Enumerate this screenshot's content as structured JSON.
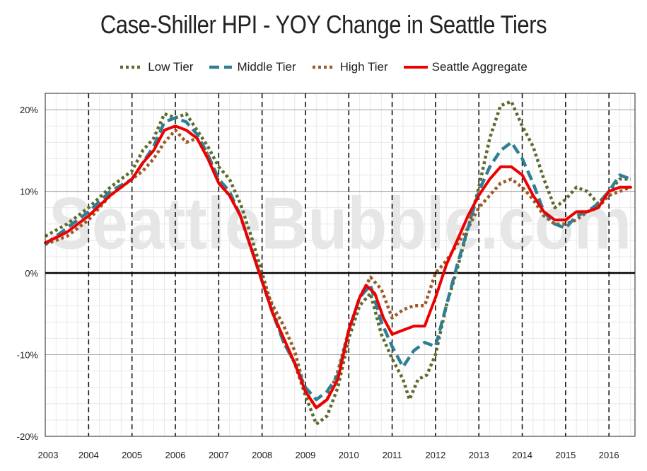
{
  "chart_data": {
    "type": "line",
    "title": "Case-Shiller HPI - YOY Change in Seattle Tiers",
    "watermark": "SeattleBubble.com",
    "xlim": [
      2003,
      2016.6
    ],
    "ylim": [
      -20,
      22
    ],
    "x_ticks": [
      2003,
      2004,
      2005,
      2006,
      2007,
      2008,
      2009,
      2010,
      2011,
      2012,
      2013,
      2014,
      2015,
      2016
    ],
    "x_tick_labels": [
      "2003",
      "2004",
      "2005",
      "2006",
      "2007",
      "2008",
      "2009",
      "2010",
      "2011",
      "2012",
      "2013",
      "2014",
      "2015",
      "2016"
    ],
    "y_ticks": [
      20,
      10,
      0,
      -10,
      -20
    ],
    "y_tick_labels": [
      "20%",
      "10%",
      "0%",
      "-10%",
      "-20%"
    ],
    "vertical_dashed_gridlines_at": [
      2004,
      2005,
      2006,
      2007,
      2008,
      2009,
      2010,
      2011,
      2012,
      2013,
      2014,
      2015,
      2016
    ],
    "zero_line": true,
    "grid": true,
    "legend_position": "top-center",
    "series": [
      {
        "name": "Low Tier",
        "color": "#5c6b2e",
        "style": "dotted",
        "points": [
          [
            2003.0,
            4.5
          ],
          [
            2003.5,
            6.0
          ],
          [
            2004.0,
            8.0
          ],
          [
            2004.5,
            10.5
          ],
          [
            2005.0,
            12.5
          ],
          [
            2005.25,
            15.0
          ],
          [
            2005.5,
            16.5
          ],
          [
            2005.75,
            19.5
          ],
          [
            2006.0,
            19.0
          ],
          [
            2006.25,
            19.5
          ],
          [
            2006.5,
            17.5
          ],
          [
            2006.75,
            15.5
          ],
          [
            2007.0,
            13.0
          ],
          [
            2007.25,
            11.5
          ],
          [
            2007.5,
            8.5
          ],
          [
            2007.75,
            4.5
          ],
          [
            2008.0,
            0.0
          ],
          [
            2008.25,
            -4.5
          ],
          [
            2008.5,
            -8.5
          ],
          [
            2008.75,
            -11.0
          ],
          [
            2009.0,
            -15.0
          ],
          [
            2009.25,
            -18.5
          ],
          [
            2009.5,
            -17.5
          ],
          [
            2009.75,
            -14.0
          ],
          [
            2010.0,
            -8.0
          ],
          [
            2010.25,
            -4.0
          ],
          [
            2010.5,
            -2.5
          ],
          [
            2010.75,
            -7.5
          ],
          [
            2011.0,
            -10.5
          ],
          [
            2011.25,
            -13.0
          ],
          [
            2011.4,
            -15.5
          ],
          [
            2011.6,
            -13.0
          ],
          [
            2011.8,
            -12.5
          ],
          [
            2012.0,
            -10.0
          ],
          [
            2012.25,
            -4.0
          ],
          [
            2012.5,
            0.5
          ],
          [
            2012.75,
            5.5
          ],
          [
            2013.0,
            10.5
          ],
          [
            2013.25,
            16.5
          ],
          [
            2013.5,
            20.5
          ],
          [
            2013.75,
            21.0
          ],
          [
            2014.0,
            18.0
          ],
          [
            2014.25,
            15.5
          ],
          [
            2014.5,
            11.5
          ],
          [
            2014.75,
            8.0
          ],
          [
            2015.0,
            9.0
          ],
          [
            2015.25,
            10.5
          ],
          [
            2015.5,
            10.0
          ],
          [
            2015.75,
            8.5
          ],
          [
            2016.0,
            10.0
          ],
          [
            2016.25,
            11.5
          ],
          [
            2016.5,
            11.5
          ]
        ]
      },
      {
        "name": "Middle Tier",
        "color": "#2e7f96",
        "style": "dashed",
        "points": [
          [
            2003.0,
            3.5
          ],
          [
            2003.5,
            5.5
          ],
          [
            2004.0,
            7.5
          ],
          [
            2004.5,
            10.0
          ],
          [
            2005.0,
            11.5
          ],
          [
            2005.25,
            13.5
          ],
          [
            2005.5,
            15.5
          ],
          [
            2005.75,
            18.5
          ],
          [
            2006.0,
            19.0
          ],
          [
            2006.25,
            18.5
          ],
          [
            2006.5,
            17.0
          ],
          [
            2006.75,
            14.5
          ],
          [
            2007.0,
            11.5
          ],
          [
            2007.25,
            10.0
          ],
          [
            2007.5,
            7.0
          ],
          [
            2007.75,
            3.0
          ],
          [
            2008.0,
            -1.0
          ],
          [
            2008.25,
            -5.0
          ],
          [
            2008.5,
            -8.5
          ],
          [
            2008.75,
            -11.0
          ],
          [
            2009.0,
            -14.0
          ],
          [
            2009.25,
            -15.5
          ],
          [
            2009.5,
            -14.5
          ],
          [
            2009.75,
            -12.5
          ],
          [
            2010.0,
            -7.0
          ],
          [
            2010.25,
            -3.0
          ],
          [
            2010.5,
            -1.5
          ],
          [
            2010.75,
            -6.0
          ],
          [
            2011.0,
            -9.0
          ],
          [
            2011.25,
            -11.5
          ],
          [
            2011.5,
            -9.5
          ],
          [
            2011.75,
            -8.5
          ],
          [
            2012.0,
            -9.0
          ],
          [
            2012.25,
            -4.0
          ],
          [
            2012.5,
            1.0
          ],
          [
            2012.75,
            5.5
          ],
          [
            2013.0,
            10.0
          ],
          [
            2013.25,
            13.0
          ],
          [
            2013.5,
            15.0
          ],
          [
            2013.75,
            16.0
          ],
          [
            2014.0,
            14.0
          ],
          [
            2014.25,
            11.0
          ],
          [
            2014.5,
            7.5
          ],
          [
            2014.75,
            6.0
          ],
          [
            2015.0,
            5.5
          ],
          [
            2015.25,
            7.0
          ],
          [
            2015.5,
            7.5
          ],
          [
            2015.75,
            8.5
          ],
          [
            2016.0,
            10.0
          ],
          [
            2016.25,
            12.0
          ],
          [
            2016.5,
            11.5
          ]
        ]
      },
      {
        "name": "High Tier",
        "color": "#9c5a28",
        "style": "dotted",
        "points": [
          [
            2003.0,
            3.5
          ],
          [
            2003.5,
            4.5
          ],
          [
            2004.0,
            6.5
          ],
          [
            2004.5,
            9.5
          ],
          [
            2005.0,
            11.5
          ],
          [
            2005.25,
            12.5
          ],
          [
            2005.5,
            14.0
          ],
          [
            2005.75,
            16.0
          ],
          [
            2006.0,
            17.5
          ],
          [
            2006.25,
            16.0
          ],
          [
            2006.5,
            16.5
          ],
          [
            2006.75,
            14.5
          ],
          [
            2007.0,
            11.0
          ],
          [
            2007.25,
            9.5
          ],
          [
            2007.5,
            7.0
          ],
          [
            2007.75,
            3.0
          ],
          [
            2008.0,
            -1.0
          ],
          [
            2008.25,
            -4.0
          ],
          [
            2008.5,
            -6.5
          ],
          [
            2008.75,
            -9.5
          ],
          [
            2009.0,
            -14.5
          ],
          [
            2009.25,
            -16.5
          ],
          [
            2009.5,
            -15.5
          ],
          [
            2009.75,
            -12.0
          ],
          [
            2010.0,
            -7.0
          ],
          [
            2010.25,
            -3.0
          ],
          [
            2010.5,
            -0.5
          ],
          [
            2010.75,
            -2.0
          ],
          [
            2011.0,
            -5.5
          ],
          [
            2011.25,
            -4.5
          ],
          [
            2011.5,
            -4.0
          ],
          [
            2011.75,
            -4.0
          ],
          [
            2012.0,
            0.0
          ],
          [
            2012.25,
            1.5
          ],
          [
            2012.5,
            3.5
          ],
          [
            2012.75,
            5.5
          ],
          [
            2013.0,
            8.0
          ],
          [
            2013.25,
            9.5
          ],
          [
            2013.5,
            11.0
          ],
          [
            2013.75,
            11.5
          ],
          [
            2014.0,
            10.5
          ],
          [
            2014.25,
            9.0
          ],
          [
            2014.5,
            7.0
          ],
          [
            2014.75,
            6.0
          ],
          [
            2015.0,
            6.0
          ],
          [
            2015.25,
            6.5
          ],
          [
            2015.5,
            7.5
          ],
          [
            2015.75,
            8.0
          ],
          [
            2016.0,
            9.5
          ],
          [
            2016.25,
            10.0
          ],
          [
            2016.5,
            10.5
          ]
        ]
      },
      {
        "name": "Seattle Aggregate",
        "color": "#ee0000",
        "style": "solid",
        "points": [
          [
            2003.0,
            3.7
          ],
          [
            2003.5,
            5.0
          ],
          [
            2004.0,
            7.0
          ],
          [
            2004.5,
            9.5
          ],
          [
            2005.0,
            11.5
          ],
          [
            2005.25,
            13.5
          ],
          [
            2005.5,
            15.0
          ],
          [
            2005.75,
            17.5
          ],
          [
            2006.0,
            18.0
          ],
          [
            2006.25,
            17.5
          ],
          [
            2006.5,
            16.5
          ],
          [
            2006.75,
            14.0
          ],
          [
            2007.0,
            11.0
          ],
          [
            2007.25,
            9.5
          ],
          [
            2007.5,
            7.0
          ],
          [
            2007.75,
            3.0
          ],
          [
            2008.0,
            -1.0
          ],
          [
            2008.25,
            -5.0
          ],
          [
            2008.5,
            -8.0
          ],
          [
            2008.75,
            -11.0
          ],
          [
            2009.0,
            -14.5
          ],
          [
            2009.25,
            -16.5
          ],
          [
            2009.5,
            -15.5
          ],
          [
            2009.75,
            -13.0
          ],
          [
            2010.0,
            -7.0
          ],
          [
            2010.25,
            -3.0
          ],
          [
            2010.4,
            -1.5
          ],
          [
            2010.6,
            -2.5
          ],
          [
            2010.8,
            -5.5
          ],
          [
            2011.0,
            -7.5
          ],
          [
            2011.25,
            -7.0
          ],
          [
            2011.5,
            -6.5
          ],
          [
            2011.75,
            -6.5
          ],
          [
            2012.0,
            -3.0
          ],
          [
            2012.25,
            1.0
          ],
          [
            2012.5,
            4.0
          ],
          [
            2012.75,
            7.0
          ],
          [
            2013.0,
            9.5
          ],
          [
            2013.25,
            11.5
          ],
          [
            2013.5,
            13.0
          ],
          [
            2013.75,
            13.0
          ],
          [
            2014.0,
            12.0
          ],
          [
            2014.25,
            9.5
          ],
          [
            2014.5,
            7.5
          ],
          [
            2014.75,
            6.5
          ],
          [
            2015.0,
            6.5
          ],
          [
            2015.25,
            7.5
          ],
          [
            2015.5,
            7.5
          ],
          [
            2015.75,
            8.0
          ],
          [
            2016.0,
            10.0
          ],
          [
            2016.25,
            10.5
          ],
          [
            2016.5,
            10.5
          ]
        ]
      }
    ]
  }
}
